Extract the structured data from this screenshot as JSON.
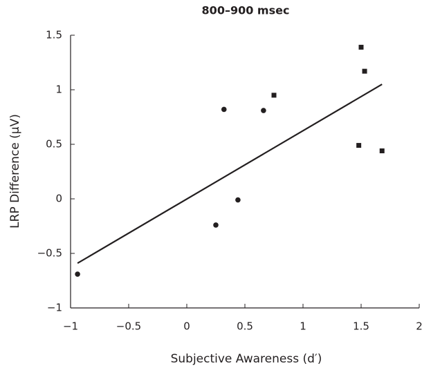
{
  "chart_data": {
    "type": "scatter",
    "title": "800–900 msec",
    "x_label": "Subjective Awareness (d′)",
    "y_label": "LRP Difference (μV)",
    "xlim": [
      -1,
      2
    ],
    "ylim": [
      -1,
      1.5
    ],
    "xticks": [
      {
        "value": -1,
        "label": "−1"
      },
      {
        "value": -0.5,
        "label": "−0.5"
      },
      0,
      0.5,
      1,
      1.5,
      2
    ],
    "yticks": [
      {
        "value": -1,
        "label": "−1"
      },
      {
        "value": -0.5,
        "label": "−0.5"
      },
      0,
      0.5,
      1,
      1.5
    ],
    "series": [
      {
        "marker": "circle",
        "color": "#231f20",
        "x": [
          -0.94,
          0.25,
          0.32,
          0.44,
          0.66
        ],
        "values": [
          -0.69,
          -0.24,
          0.82,
          -0.01,
          0.81
        ]
      },
      {
        "marker": "square",
        "color": "#231f20",
        "x": [
          0.75,
          1.5,
          1.53,
          1.48,
          1.68
        ],
        "values": [
          0.95,
          1.39,
          1.17,
          0.49,
          0.44
        ]
      },
      {
        "marker": "line",
        "color": "#231f20",
        "x": [
          -0.94,
          1.68
        ],
        "values": [
          -0.59,
          1.05
        ]
      }
    ]
  }
}
